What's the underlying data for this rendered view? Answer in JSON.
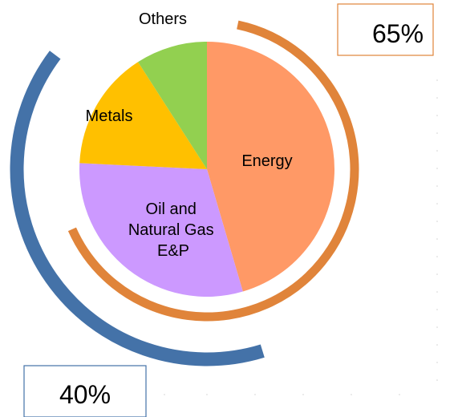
{
  "chart_data": {
    "type": "pie",
    "slices": [
      {
        "label": "Energy",
        "value": 45,
        "color": "#FF9966"
      },
      {
        "label": "Oil and\nNatural Gas\nE&P",
        "value": 30,
        "color": "#CC99FF"
      },
      {
        "label": "Metals",
        "value": 15,
        "color": "#FFC000"
      },
      {
        "label": "Others",
        "value": 9,
        "color": "#92D050"
      }
    ],
    "overlay_arcs": [
      {
        "label": "65%",
        "value": 65,
        "color": "#E0843A"
      },
      {
        "label": "40%",
        "value": 40,
        "color": "#4472A8"
      }
    ]
  }
}
